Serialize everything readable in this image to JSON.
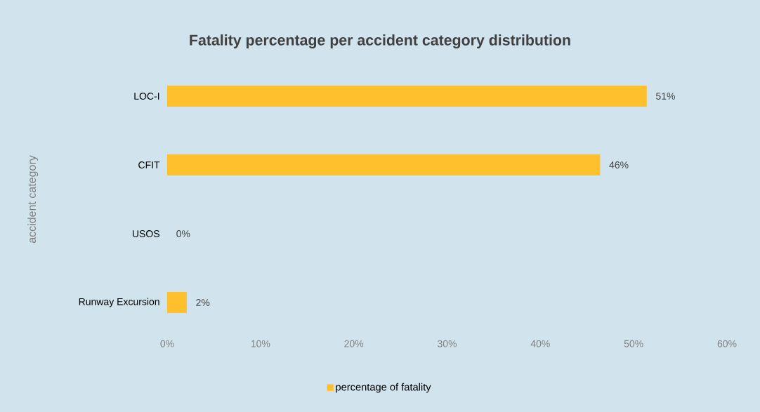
{
  "chart_data": {
    "type": "bar",
    "orientation": "horizontal",
    "title": "Fatality percentage per accident category distribution",
    "ylabel": "accident category",
    "categories": [
      "LOC-I",
      "CFIT",
      "USOS",
      "Runway Excursion"
    ],
    "series": [
      {
        "name": "percentage of fatality",
        "color": "#ffc02d",
        "values": [
          51.4,
          46.4,
          0,
          2.1
        ],
        "value_labels": [
          "51%",
          "46%",
          "0%",
          "2%"
        ]
      }
    ],
    "xlim": [
      0,
      60
    ],
    "xticks": [
      {
        "value": 0,
        "label": "0%"
      },
      {
        "value": 10,
        "label": "10%"
      },
      {
        "value": 20,
        "label": "20%"
      },
      {
        "value": 30,
        "label": "30%"
      },
      {
        "value": 40,
        "label": "40%"
      },
      {
        "value": 50,
        "label": "50%"
      },
      {
        "value": 60,
        "label": "60%"
      }
    ],
    "grid": false,
    "legend": "bottom"
  }
}
